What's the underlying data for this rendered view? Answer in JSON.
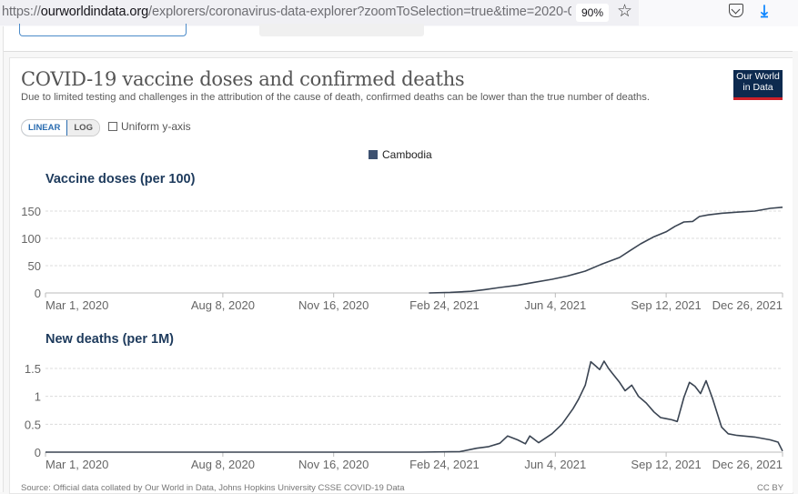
{
  "browser": {
    "url_prefix": "https://",
    "url_domain": "ourworldindata.org",
    "url_path": "/explorers/coronavirus-data-explorer?zoomToSelection=true&time=2020-0:",
    "zoom_level": "90%",
    "icons": [
      "star-icon",
      "pocket-icon",
      "download-icon"
    ]
  },
  "header": {
    "title": "COVID-19 vaccine doses and confirmed deaths",
    "subtitle": "Due to limited testing and challenges in the attribution of the cause of death, confirmed deaths can be lower than the true number of deaths.",
    "logo_line1": "Our World",
    "logo_line2": "in Data"
  },
  "controls": {
    "linear_label": "LINEAR",
    "log_label": "LOG",
    "uniform_label": "Uniform y-axis",
    "uniform_checked": false,
    "selected_scale": "LINEAR"
  },
  "legend": {
    "label": "Cambodia",
    "color": "#3d5170"
  },
  "footer": {
    "source": "Source: Official data collated by Our World in Data, Johns Hopkins University CSSE COVID-19 Data",
    "license": "CC BY"
  },
  "colors": {
    "line": "#3a4452",
    "title_blue": "#1d3a5c",
    "logo_bg": "#0d2a4f",
    "logo_accent": "#ce2029",
    "linear_accent": "#2a6cb0"
  },
  "chart_data": [
    {
      "type": "line",
      "title": "Vaccine doses (per 100)",
      "xlabel": "",
      "ylabel": "",
      "x_range": [
        "2020-03-01",
        "2021-12-26"
      ],
      "ylim": [
        0,
        150
      ],
      "yticks": [
        0,
        50,
        100,
        150
      ],
      "ytick_labels": [
        "0",
        "50",
        "100",
        "150"
      ],
      "xticks": [
        "2020-03-01",
        "2020-08-08",
        "2020-11-16",
        "2021-02-24",
        "2021-06-04",
        "2021-09-12",
        "2021-12-26"
      ],
      "xtick_labels": [
        "Mar 1, 2020",
        "Aug 8, 2020",
        "Nov 16, 2020",
        "Feb 24, 2021",
        "Jun 4, 2021",
        "Sep 12, 2021",
        "Dec 26, 2021"
      ],
      "grid": true,
      "series": [
        {
          "name": "Cambodia",
          "x": [
            "2021-02-10",
            "2021-03-01",
            "2021-03-20",
            "2021-04-01",
            "2021-04-15",
            "2021-05-01",
            "2021-05-15",
            "2021-06-01",
            "2021-06-15",
            "2021-07-01",
            "2021-07-15",
            "2021-08-01",
            "2021-08-10",
            "2021-08-20",
            "2021-09-01",
            "2021-09-12",
            "2021-09-20",
            "2021-09-28",
            "2021-10-06",
            "2021-10-12",
            "2021-10-20",
            "2021-11-01",
            "2021-11-15",
            "2021-12-01",
            "2021-12-15",
            "2021-12-26"
          ],
          "y": [
            0,
            1,
            3,
            6,
            10,
            14,
            19,
            25,
            31,
            40,
            52,
            65,
            77,
            90,
            103,
            112,
            122,
            130,
            131,
            140,
            143,
            146,
            148,
            150,
            155,
            157
          ]
        }
      ]
    },
    {
      "type": "line",
      "title": "New deaths (per 1M)",
      "xlabel": "",
      "ylabel": "",
      "x_range": [
        "2020-03-01",
        "2021-12-26"
      ],
      "ylim": [
        0,
        1.5
      ],
      "yticks": [
        0,
        0.5,
        1,
        1.5
      ],
      "ytick_labels": [
        "0",
        "0.5",
        "1",
        "1.5"
      ],
      "xticks": [
        "2020-03-01",
        "2020-08-08",
        "2020-11-16",
        "2021-02-24",
        "2021-06-04",
        "2021-09-12",
        "2021-12-26"
      ],
      "xtick_labels": [
        "Mar 1, 2020",
        "Aug 8, 2020",
        "Nov 16, 2020",
        "Feb 24, 2021",
        "Jun 4, 2021",
        "Sep 12, 2021",
        "Dec 26, 2021"
      ],
      "grid": true,
      "series": [
        {
          "name": "Cambodia",
          "x": [
            "2020-03-01",
            "2021-02-01",
            "2021-03-10",
            "2021-03-25",
            "2021-04-05",
            "2021-04-15",
            "2021-04-22",
            "2021-05-01",
            "2021-05-08",
            "2021-05-12",
            "2021-05-20",
            "2021-06-01",
            "2021-06-10",
            "2021-06-20",
            "2021-06-25",
            "2021-07-01",
            "2021-07-06",
            "2021-07-10",
            "2021-07-14",
            "2021-07-18",
            "2021-07-22",
            "2021-07-26",
            "2021-08-01",
            "2021-08-06",
            "2021-08-12",
            "2021-08-18",
            "2021-08-25",
            "2021-09-01",
            "2021-09-07",
            "2021-09-12",
            "2021-09-17",
            "2021-09-22",
            "2021-09-28",
            "2021-10-03",
            "2021-10-08",
            "2021-10-13",
            "2021-10-18",
            "2021-10-24",
            "2021-11-01",
            "2021-11-07",
            "2021-11-15",
            "2021-12-01",
            "2021-12-15",
            "2021-12-22",
            "2021-12-26"
          ],
          "y": [
            0,
            0,
            0.01,
            0.07,
            0.1,
            0.16,
            0.29,
            0.22,
            0.15,
            0.29,
            0.17,
            0.33,
            0.5,
            0.78,
            0.95,
            1.2,
            1.62,
            1.55,
            1.48,
            1.63,
            1.5,
            1.4,
            1.25,
            1.1,
            1.2,
            1.0,
            0.88,
            0.72,
            0.62,
            0.6,
            0.58,
            0.55,
            0.98,
            1.25,
            1.18,
            1.05,
            1.28,
            0.95,
            0.45,
            0.33,
            0.3,
            0.27,
            0.22,
            0.18,
            0.02
          ]
        }
      ]
    }
  ]
}
